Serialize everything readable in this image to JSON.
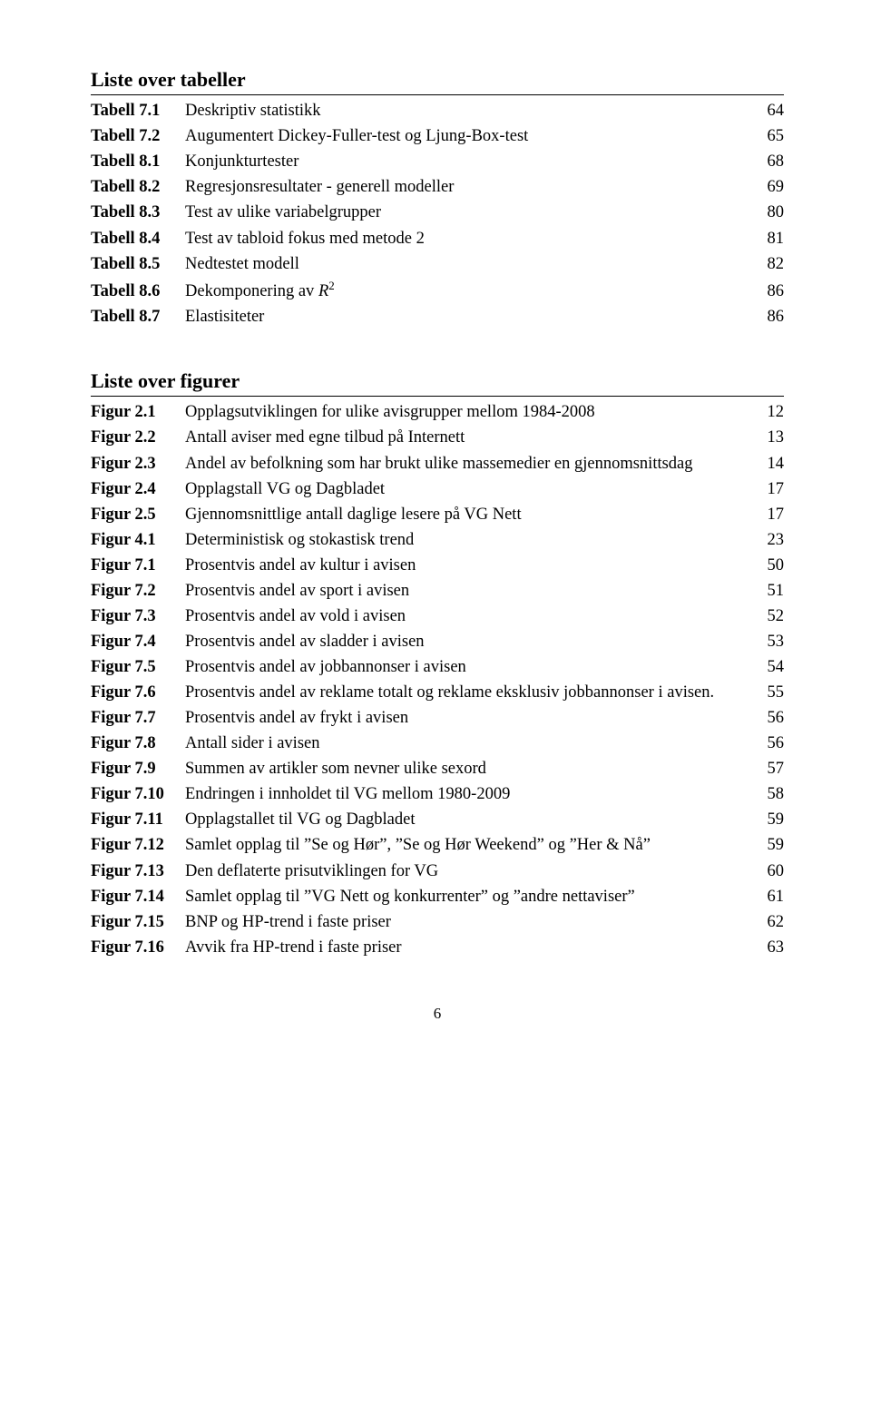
{
  "tables_heading": "Liste over tabeller",
  "figures_heading": "Liste over figurer",
  "tables": [
    {
      "label": "Tabell 7.1",
      "title": "Deskriptiv statistikk",
      "page": "64"
    },
    {
      "label": "Tabell 7.2",
      "title": "Augumentert Dickey-Fuller-test og Ljung-Box-test",
      "page": "65"
    },
    {
      "label": "Tabell 8.1",
      "title": "Konjunkturtester",
      "page": "68"
    },
    {
      "label": "Tabell 8.2",
      "title": "Regresjonsresultater - generell modeller",
      "page": "69"
    },
    {
      "label": "Tabell 8.3",
      "title": "Test av ulike variabelgrupper",
      "page": "80"
    },
    {
      "label": "Tabell 8.4",
      "title": "Test av tabloid fokus med metode 2",
      "page": "81"
    },
    {
      "label": "Tabell 8.5",
      "title": "Nedtestet modell",
      "page": "82"
    },
    {
      "label": "Tabell 8.6",
      "title_html": "Dekomponering av <i>R</i><sup>2</sup>",
      "page": "86"
    },
    {
      "label": "Tabell 8.7",
      "title": "Elastisiteter",
      "page": "86"
    }
  ],
  "figures": [
    {
      "label": "Figur 2.1",
      "title": "Opplagsutviklingen for ulike avisgrupper mellom 1984-2008",
      "page": "12"
    },
    {
      "label": "Figur 2.2",
      "title": "Antall aviser med egne tilbud på Internett",
      "page": "13"
    },
    {
      "label": "Figur 2.3",
      "title": "Andel av befolkning som har brukt ulike massemedier en gjennomsnittsdag",
      "page": "14"
    },
    {
      "label": "Figur 2.4",
      "title": "Opplagstall VG og Dagbladet",
      "page": "17"
    },
    {
      "label": "Figur 2.5",
      "title": "Gjennomsnittlige antall daglige lesere på VG Nett",
      "page": "17"
    },
    {
      "label": "Figur 4.1",
      "title": "Deterministisk og stokastisk trend",
      "page": "23"
    },
    {
      "label": "Figur 7.1",
      "title": "Prosentvis andel av kultur i avisen",
      "page": "50"
    },
    {
      "label": "Figur 7.2",
      "title": "Prosentvis andel av sport i avisen",
      "page": "51"
    },
    {
      "label": "Figur 7.3",
      "title": "Prosentvis andel av vold i avisen",
      "page": "52"
    },
    {
      "label": "Figur 7.4",
      "title": "Prosentvis andel av sladder i avisen",
      "page": "53"
    },
    {
      "label": "Figur 7.5",
      "title": "Prosentvis andel av jobbannonser i avisen",
      "page": "54"
    },
    {
      "label": "Figur 7.6",
      "title": "Prosentvis andel av reklame totalt og reklame eksklusiv jobbannonser i avisen.",
      "page": "55"
    },
    {
      "label": "Figur 7.7",
      "title": "Prosentvis andel av frykt i avisen",
      "page": "56"
    },
    {
      "label": "Figur 7.8",
      "title": "Antall sider i avisen",
      "page": "56"
    },
    {
      "label": "Figur 7.9",
      "title": "Summen av artikler som nevner ulike sexord",
      "page": "57"
    },
    {
      "label": "Figur 7.10",
      "title": "Endringen i innholdet til VG mellom 1980-2009",
      "page": "58"
    },
    {
      "label": "Figur 7.11",
      "title": "Opplagstallet til VG og Dagbladet",
      "page": "59"
    },
    {
      "label": "Figur 7.12",
      "title": "Samlet opplag til ”Se og Hør”, ”Se og Hør Weekend” og ”Her & Nå”",
      "page": "59"
    },
    {
      "label": "Figur 7.13",
      "title": "Den deflaterte prisutviklingen for VG",
      "page": "60"
    },
    {
      "label": "Figur 7.14",
      "title": "Samlet opplag til ”VG Nett og konkurrenter” og ”andre nettaviser”",
      "page": "61"
    },
    {
      "label": "Figur 7.15",
      "title": "BNP og HP-trend i faste priser",
      "page": "62"
    },
    {
      "label": "Figur 7.16",
      "title": "Avvik fra HP-trend i faste priser",
      "page": "63"
    }
  ],
  "page_number": "6"
}
